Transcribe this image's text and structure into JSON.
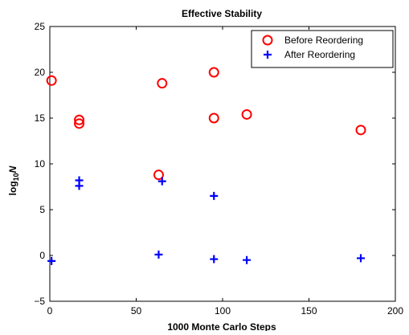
{
  "chart_data": {
    "type": "scatter",
    "title": "Effective Stability",
    "xlabel": "1000 Monte Carlo Steps",
    "ylabel": {
      "prefix": "log",
      "subscript": "10",
      "variable": "N"
    },
    "xlim": [
      0,
      200
    ],
    "ylim": [
      -5,
      25
    ],
    "xticks": [
      "0",
      "50",
      "100",
      "150",
      "200"
    ],
    "yticks": [
      "−5",
      "0",
      "5",
      "10",
      "15",
      "20",
      "25"
    ],
    "grid": false,
    "legend_position": "top-right",
    "series": [
      {
        "name": "Before Reordering",
        "marker": "circle",
        "color": "#ff0000",
        "points": [
          {
            "x": 1,
            "y": 19.1
          },
          {
            "x": 17,
            "y": 14.8
          },
          {
            "x": 17,
            "y": 14.4
          },
          {
            "x": 63,
            "y": 8.8
          },
          {
            "x": 65,
            "y": 18.8
          },
          {
            "x": 95,
            "y": 20.0
          },
          {
            "x": 95,
            "y": 15.0
          },
          {
            "x": 114,
            "y": 15.4
          },
          {
            "x": 180,
            "y": 13.7
          }
        ]
      },
      {
        "name": "After Reordering",
        "marker": "plus",
        "color": "#0000ff",
        "points": [
          {
            "x": 1,
            "y": -0.6
          },
          {
            "x": 17,
            "y": 8.2
          },
          {
            "x": 17,
            "y": 7.6
          },
          {
            "x": 63,
            "y": 0.1
          },
          {
            "x": 65,
            "y": 8.1
          },
          {
            "x": 95,
            "y": 6.5
          },
          {
            "x": 95,
            "y": -0.4
          },
          {
            "x": 114,
            "y": -0.5
          },
          {
            "x": 180,
            "y": -0.3
          }
        ]
      }
    ]
  }
}
